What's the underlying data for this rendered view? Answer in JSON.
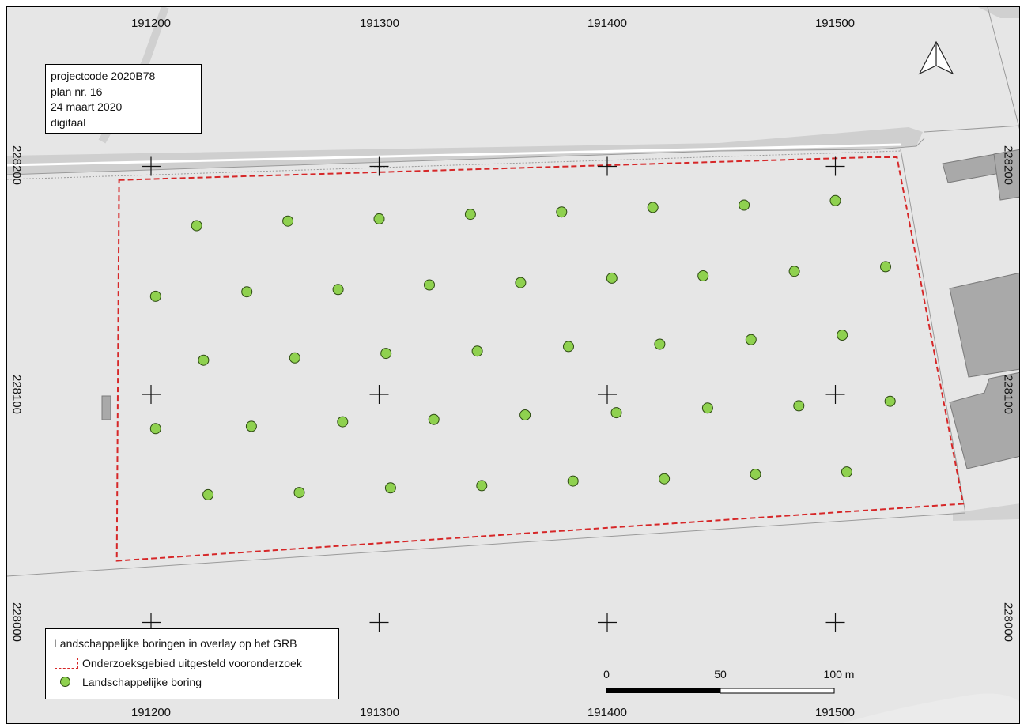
{
  "info_box": {
    "lines": [
      "projectcode 2020B78",
      "plan nr. 16",
      "24 maart 2020",
      "digitaal"
    ]
  },
  "grid": {
    "x_labels": [
      "191200",
      "191300",
      "191400",
      "191500"
    ],
    "y_labels": [
      "228200",
      "228100",
      "228000"
    ]
  },
  "legend": {
    "title": "Landschappelijke boringen in overlay op het GRB",
    "items": [
      {
        "label": "Onderzoeksgebied uitgesteld vooronderzoek",
        "symbol": "dashed-red-polygon"
      },
      {
        "label": "Landschappelijke boring",
        "symbol": "green-circle"
      }
    ]
  },
  "scale_bar": {
    "labels": [
      "0",
      "50",
      "100 m"
    ]
  },
  "north_arrow": {
    "icon": "north-arrow-icon"
  },
  "colors": {
    "background": "#e6e6e6",
    "road": "#cfcfcf",
    "building": "#a9a9a9",
    "study_area_outline": "#d62728",
    "boring_fill": "#8fd14f"
  },
  "borings": [
    [
      191220,
      228174
    ],
    [
      191260,
      228176
    ],
    [
      191300,
      228177
    ],
    [
      191340,
      228179
    ],
    [
      191380,
      228180
    ],
    [
      191420,
      228182
    ],
    [
      191460,
      228183
    ],
    [
      191500,
      228185
    ],
    [
      191202,
      228143
    ],
    [
      191242,
      228145
    ],
    [
      191282,
      228146
    ],
    [
      191322,
      228148
    ],
    [
      191362,
      228149
    ],
    [
      191402,
      228151
    ],
    [
      191442,
      228152
    ],
    [
      191482,
      228154
    ],
    [
      191522,
      228156
    ],
    [
      191223,
      228115
    ],
    [
      191263,
      228116
    ],
    [
      191303,
      228118
    ],
    [
      191343,
      228119
    ],
    [
      191383,
      228121
    ],
    [
      191423,
      228122
    ],
    [
      191463,
      228124
    ],
    [
      191503,
      228126
    ],
    [
      191202,
      228085
    ],
    [
      191244,
      228086
    ],
    [
      191284,
      228088
    ],
    [
      191324,
      228089
    ],
    [
      191364,
      228091
    ],
    [
      191404,
      228092
    ],
    [
      191444,
      228094
    ],
    [
      191484,
      228095
    ],
    [
      191524,
      228097
    ],
    [
      191225,
      228056
    ],
    [
      191265,
      228057
    ],
    [
      191305,
      228059
    ],
    [
      191345,
      228060
    ],
    [
      191385,
      228062
    ],
    [
      191425,
      228063
    ],
    [
      191465,
      228065
    ],
    [
      191505,
      228066
    ]
  ],
  "study_area": [
    [
      191186,
      228194
    ],
    [
      191515,
      228204
    ],
    [
      191527,
      228204
    ],
    [
      191556,
      228052
    ],
    [
      191185,
      228027
    ]
  ]
}
